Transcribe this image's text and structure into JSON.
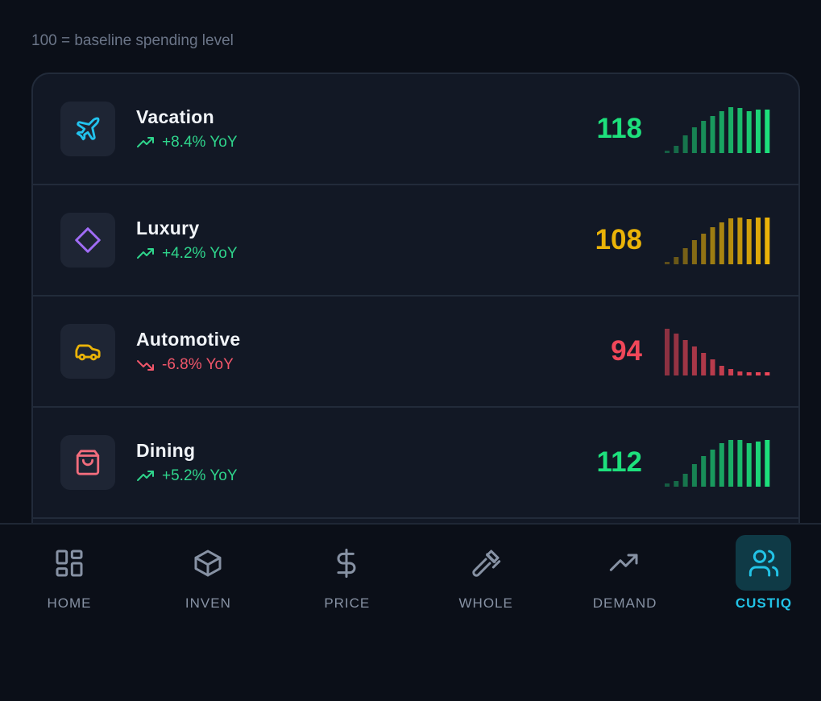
{
  "subtitle": "100 = baseline spending level",
  "categories": [
    {
      "name": "Vacation",
      "change": "+8.4% YoY",
      "trend": "up",
      "index": 118,
      "color": "#1de07c",
      "spark": [
        3,
        9,
        22,
        32,
        40,
        46,
        52,
        57,
        56,
        52,
        54,
        54
      ]
    },
    {
      "name": "Luxury",
      "change": "+4.2% YoY",
      "trend": "up",
      "index": 108,
      "color": "#eab308",
      "spark": [
        3,
        9,
        20,
        30,
        38,
        46,
        52,
        57,
        58,
        56,
        58,
        58
      ]
    },
    {
      "name": "Automotive",
      "change": "-6.8% YoY",
      "trend": "down",
      "index": 94,
      "color": "#f04759",
      "spark": [
        58,
        52,
        44,
        36,
        28,
        20,
        12,
        8,
        5,
        4,
        4,
        4
      ]
    },
    {
      "name": "Dining",
      "change": "+5.2% YoY",
      "trend": "up",
      "index": 112,
      "color": "#1de07c",
      "spark": [
        4,
        7,
        16,
        28,
        38,
        46,
        54,
        58,
        58,
        54,
        56,
        58
      ]
    }
  ],
  "nav": [
    "HOME",
    "INVEN",
    "PRICE",
    "WHOLE",
    "DEMAND",
    "CUSTIQ"
  ],
  "active_nav": 5
}
